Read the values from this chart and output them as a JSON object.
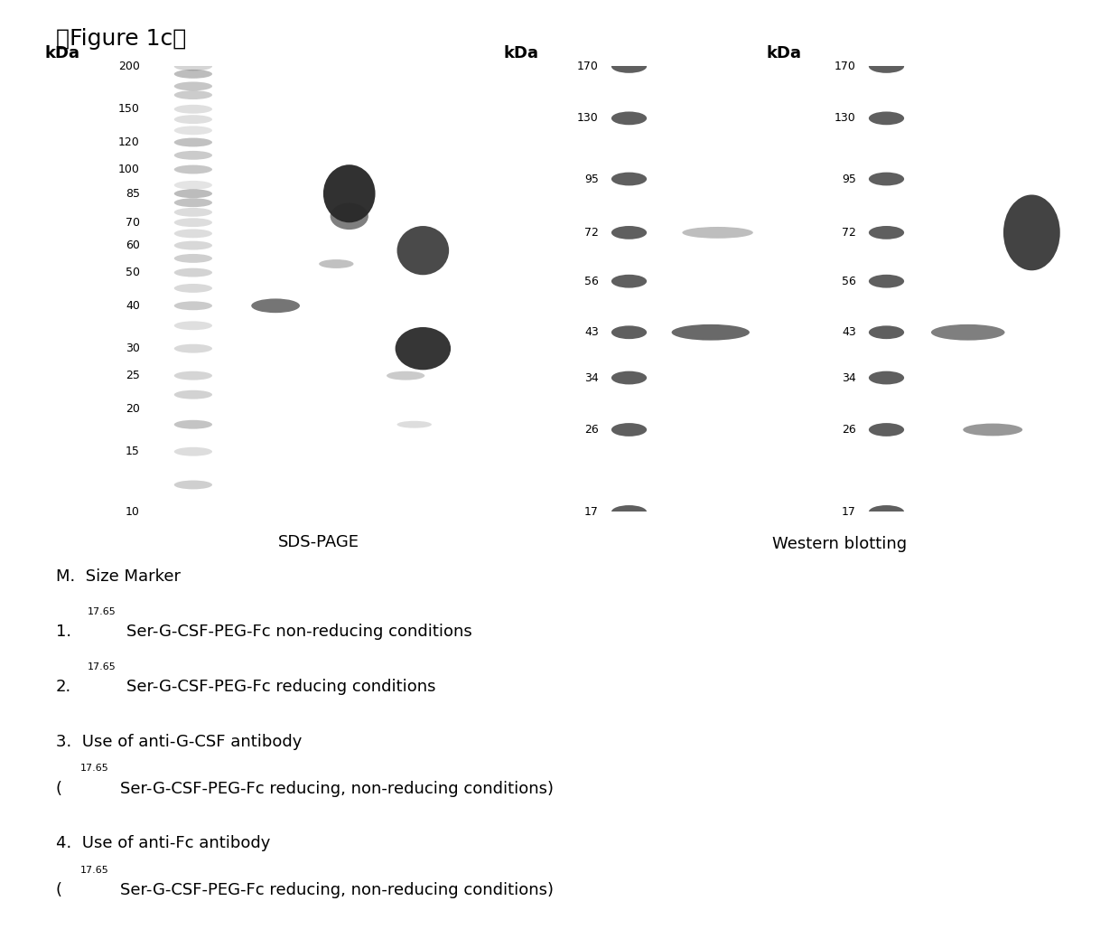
{
  "figure_title": "【Figure 1c】",
  "bg_color": "#ffffff",
  "sds_bg": "#e8e8e8",
  "wb_bg": "#cccccc",
  "sds_label": "SDS-PAGE",
  "wb_label": "Western blotting",
  "kda_label": "kDa",
  "sds_yticks": [
    200,
    150,
    120,
    100,
    85,
    70,
    60,
    50,
    40,
    30,
    25,
    20,
    15,
    10
  ],
  "wb_yticks": [
    170,
    130,
    95,
    72,
    56,
    43,
    34,
    26,
    17
  ]
}
